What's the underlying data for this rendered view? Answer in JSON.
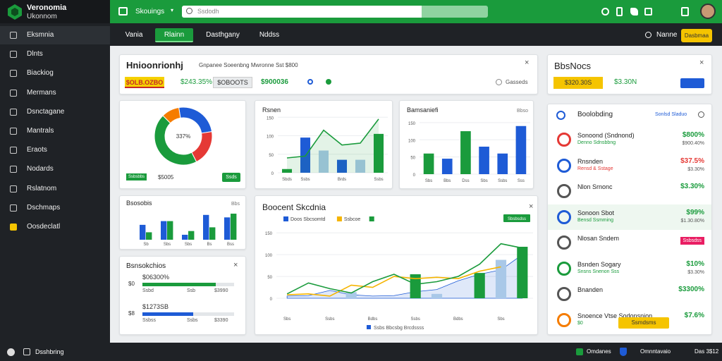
{
  "brand": {
    "title": "Veronomia",
    "subtitle": "Ukonnom"
  },
  "sidebar": {
    "items": [
      "Eksmnia",
      "Dlnts",
      "Biackiog",
      "Mermans",
      "Dsnctagane",
      "Mantrals",
      "Eraots",
      "Nodards",
      "Rslatnom",
      "Dschmaps",
      "Oosdeclatl"
    ],
    "active": 0
  },
  "topbar": {
    "dropdown": "Skouings",
    "search": "Ssdodh"
  },
  "tabs": {
    "items": [
      "Vania",
      "Rlainn",
      "Dasthgany",
      "Nddss"
    ],
    "active": 1
  },
  "user": {
    "name": "Nanne",
    "button": "Dasbmaa"
  },
  "summary": {
    "title": "Hnioonrionhj",
    "subtitle": "Gnpanee Soeenbng Mwronne Sst $800",
    "highlight": "$OLB.OZBO",
    "change": "$243.35%",
    "boxed": "$OBOOTS",
    "total": "$900036",
    "link": "Gasseds"
  },
  "balance": {
    "title": "BbsNocs",
    "highlight": "$320.30S",
    "value": "$3.30N"
  },
  "donut": {
    "center": "337%",
    "values": [
      25,
      20,
      45,
      10
    ],
    "colors": [
      "#1e5bd6",
      "#e53935",
      "#1a9b3c",
      "#f57c00"
    ],
    "tag": "Ssbsbbs",
    "caption": "$5005",
    "button": "Ssds"
  },
  "trend": {
    "title": "Rsnen",
    "categories": [
      "Sbds",
      "Ssbs",
      null,
      "Brds",
      null,
      "Ssbs"
    ],
    "bars": [
      10,
      95,
      60,
      35,
      35,
      105
    ],
    "bar_colors": [
      "#1a9b3c",
      "#1e5bd6",
      "#a9c8e8",
      "#1e5bd6",
      "#a9c8e8",
      "#1a9b3c"
    ],
    "line": [
      40,
      45,
      115,
      75,
      80,
      145
    ],
    "line_color": "#1a9b3c",
    "ylim": [
      0,
      160
    ],
    "yticks": [
      0,
      50,
      100,
      150
    ]
  },
  "columns": {
    "title": "Bamsaniefi",
    "badge": "Bbso",
    "categories": [
      "Sbs",
      "Bbs",
      "Dss",
      "Sbs",
      "Ssbs",
      "Sss"
    ],
    "values": [
      60,
      45,
      125,
      80,
      60,
      140
    ],
    "colors": [
      "#1a9b3c",
      "#1e5bd6",
      "#1a9b3c",
      "#1e5bd6",
      "#1e5bd6",
      "#1e5bd6"
    ],
    "ylim": [
      0,
      160
    ],
    "yticks": [
      0,
      50,
      100,
      150
    ]
  },
  "small_bars": {
    "title": "Bsosobis",
    "badge": "Bbs",
    "categories": [
      "Sb",
      "Sbs",
      "Sbs",
      "Bs",
      "Bss"
    ],
    "series": [
      {
        "color": "#1e5bd6",
        "values": [
          24,
          30,
          8,
          40,
          36
        ]
      },
      {
        "color": "#1a9b3c",
        "values": [
          12,
          30,
          14,
          20,
          42
        ]
      }
    ],
    "ylim": [
      0,
      50
    ]
  },
  "progress": {
    "title": "Bsnsokchios",
    "xlim": [
      0,
      100
    ],
    "rows": [
      {
        "axis": "$0",
        "label": "$06300%",
        "value": 80,
        "color": "#1a9b3c",
        "left": "Ssbd",
        "mid": "Ssb",
        "right": "$3990"
      },
      {
        "axis": "$8",
        "label": "$1273SB",
        "value": 55,
        "color": "#1e5bd6",
        "left": "Ssbss",
        "mid": "Ssbs",
        "right": "$3390"
      }
    ]
  },
  "big": {
    "title": "Boocent Skcdnia",
    "badge": "Sbsbsdss",
    "caption": "Ssbs Bbcsbg Brcdssss",
    "categories": [
      "Sbs",
      null,
      "Ssbs",
      null,
      "Bdbs",
      null,
      "Ssbs",
      null,
      "Bdbs",
      null,
      "Sbs",
      null
    ],
    "series": [
      {
        "name": "Doos Sbcsomtd",
        "color": "#1e5bd6",
        "style": "area",
        "values": [
          5,
          6,
          18,
          8,
          5,
          6,
          15,
          20,
          40,
          55,
          65,
          100
        ]
      },
      {
        "name": "Ssbcoe",
        "color": "#f5b400",
        "style": "line",
        "values": [
          8,
          10,
          5,
          30,
          25,
          50,
          45,
          48,
          45,
          62,
          72,
          null
        ]
      },
      {
        "name": null,
        "color": "#1a9b3c",
        "style": "line",
        "values": [
          10,
          35,
          22,
          12,
          38,
          55,
          32,
          38,
          50,
          78,
          125,
          115
        ]
      }
    ],
    "bars": {
      "values": [
        null,
        null,
        null,
        14,
        null,
        null,
        55,
        10,
        null,
        58,
        88,
        118
      ],
      "colors": [
        null,
        null,
        null,
        "#a9c8e8",
        null,
        null,
        "#1a9b3c",
        "#a9c8e8",
        null,
        "#1a9b3c",
        "#a9c8e8",
        "#1a9b3c"
      ]
    },
    "ylim": [
      0,
      160
    ],
    "yticks": [
      0,
      50,
      100,
      150
    ]
  },
  "list": {
    "title": "Boolobding",
    "link": "Sonlsd Sladuo",
    "rows": [
      {
        "title": "Sonoond (Sndnond)",
        "subtitle": "Denno Sdnsbbng",
        "value": "$800%",
        "note": "$900.40%",
        "color": "#1a9b3c",
        "icon": "#e53935"
      },
      {
        "title": "Rnsnden",
        "subtitle": "Rensd & Sstage",
        "value": "$37.5%",
        "note": "$3.30%",
        "color": "#e53935",
        "icon": "#1e5bd6"
      },
      {
        "title": "Nlon Srnonc",
        "value": "$3.30%",
        "color": "#1a9b3c",
        "icon": "#555555"
      },
      {
        "title": "Sonoon Sbot",
        "subtitle": "Bensd Ssmming",
        "value": "$99%",
        "note": "$1.30.80%",
        "color": "#1a9b3c",
        "icon": "#1e5bd6"
      },
      {
        "title": "Nlosan Sndem",
        "badge": "Ssbsdss",
        "color": "#e91e63",
        "icon": "#555555"
      },
      {
        "title": "Bsnden Sogary",
        "subtitle": "Snsns Snenon Sss",
        "value": "$10%",
        "note": "$3.30%",
        "color": "#1a9b3c",
        "icon": "#1a9b3c"
      },
      {
        "title": "Bnanden",
        "value": "$3300%",
        "color": "#1a9b3c",
        "icon": "#555555"
      },
      {
        "title": "Snoence Vtse Sodonsnion",
        "subtitle": "$0",
        "value": "$7.6%",
        "button": "Ssmdsms",
        "color": "#1a9b3c",
        "icon": "#f57c00"
      }
    ]
  },
  "footer": {
    "label": "Dsshbring",
    "status": "Omdanes",
    "account": "Omnntavaio",
    "time": "Das 3$12"
  }
}
